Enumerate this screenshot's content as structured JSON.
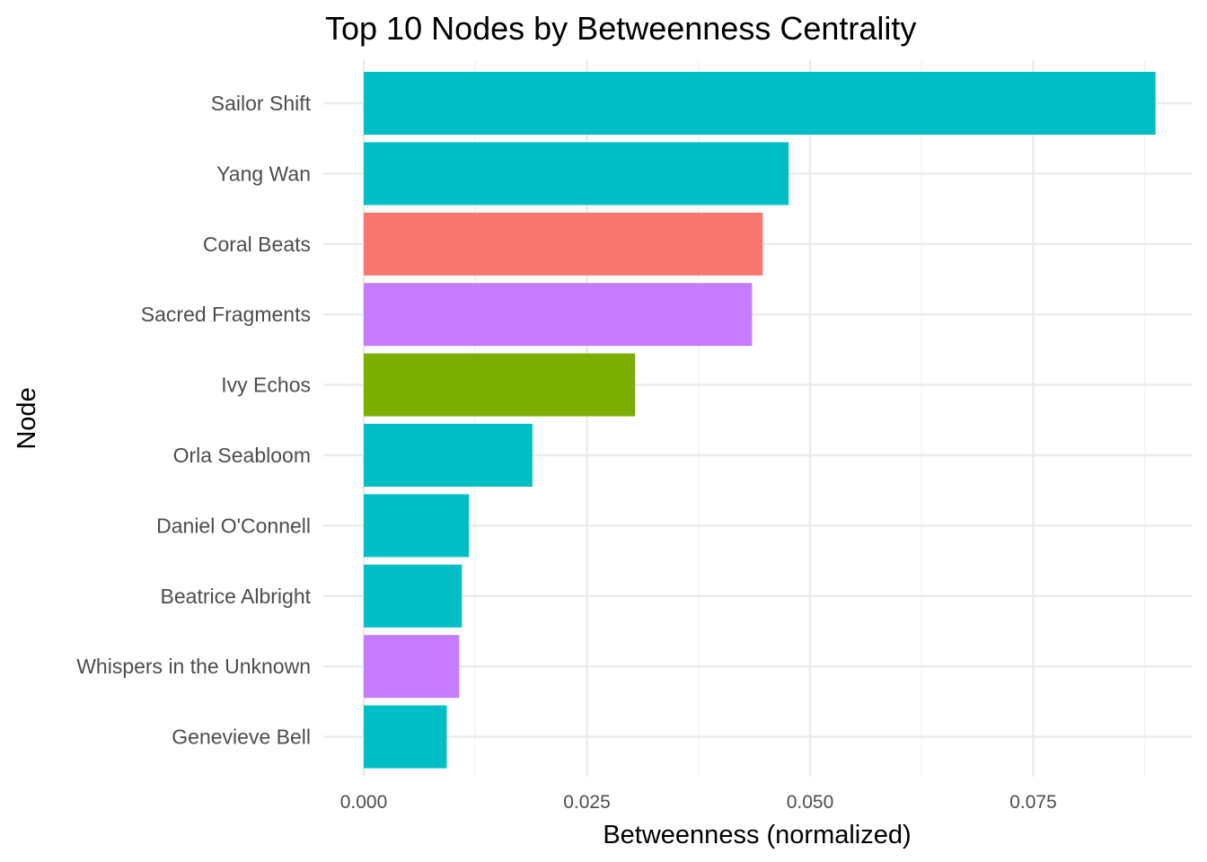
{
  "chart_data": {
    "type": "bar",
    "orientation": "horizontal",
    "title": "Top 10 Nodes by Betweenness Centrality",
    "xlabel": "Betweenness (normalized)",
    "ylabel": "Node",
    "xlim": [
      0,
      0.0885
    ],
    "xticks": [
      0.0,
      0.025,
      0.05,
      0.075
    ],
    "xtick_labels": [
      "0.000",
      "0.025",
      "0.050",
      "0.075"
    ],
    "grid": true,
    "legend": "none",
    "categories": [
      "Sailor Shift",
      "Yang Wan",
      "Coral Beats",
      "Sacred Fragments",
      "Ivy Echos",
      "Orla Seabloom",
      "Daniel O'Connell",
      "Beatrice Albright",
      "Whispers in the Unknown",
      "Genevieve Bell"
    ],
    "values": [
      0.0887,
      0.0476,
      0.0447,
      0.0435,
      0.0304,
      0.0189,
      0.0118,
      0.011,
      0.0107,
      0.0093
    ],
    "colors": [
      "#00BFC4",
      "#00BFC4",
      "#F8766D",
      "#C77CFF",
      "#7CAE00",
      "#00BFC4",
      "#00BFC4",
      "#00BFC4",
      "#C77CFF",
      "#00BFC4"
    ]
  }
}
